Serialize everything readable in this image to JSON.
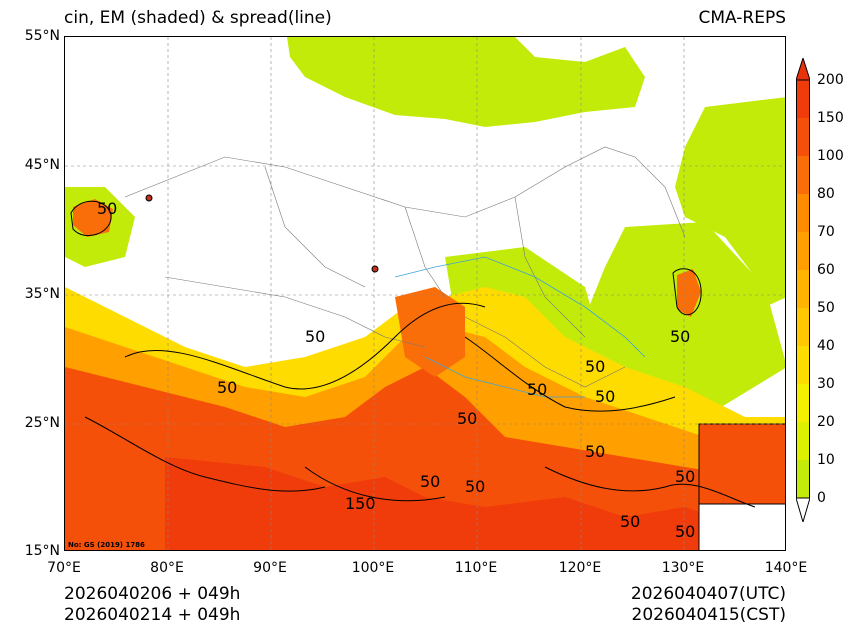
{
  "title": {
    "left": "cin, EM (shaded) & spread(line)",
    "right": "CMA-REPS"
  },
  "axes": {
    "lat_labels": [
      "55°N",
      "45°N",
      "35°N",
      "25°N",
      "15°N"
    ],
    "lon_labels": [
      "70°E",
      "80°E",
      "90°E",
      "100°E",
      "110°E",
      "120°E",
      "130°E",
      "140°E"
    ]
  },
  "colorbar": {
    "labels": [
      "200",
      "150",
      "100",
      "80",
      "70",
      "60",
      "50",
      "40",
      "30",
      "20",
      "10",
      "0"
    ],
    "colors": [
      "#f03c0a",
      "#f5500a",
      "#fa6e0a",
      "#ff8c00",
      "#ffa000",
      "#ffb400",
      "#ffc800",
      "#ffdc00",
      "#f5f000",
      "#dcf000",
      "#c3eb0a"
    ],
    "over_color": "#e8320a"
  },
  "contour_labels": [
    "50",
    "50",
    "50",
    "50",
    "50",
    "50",
    "50",
    "50",
    "50",
    "50",
    "50",
    "150",
    "50",
    "50",
    "50"
  ],
  "copyright": "No: GS (2019) 1786",
  "footer": {
    "init_utc": "2026040206  +  049h",
    "init_cst": "2026040214  +  049h",
    "valid_utc": "2026040407(UTC)",
    "valid_cst": "2026040415(CST)"
  }
}
